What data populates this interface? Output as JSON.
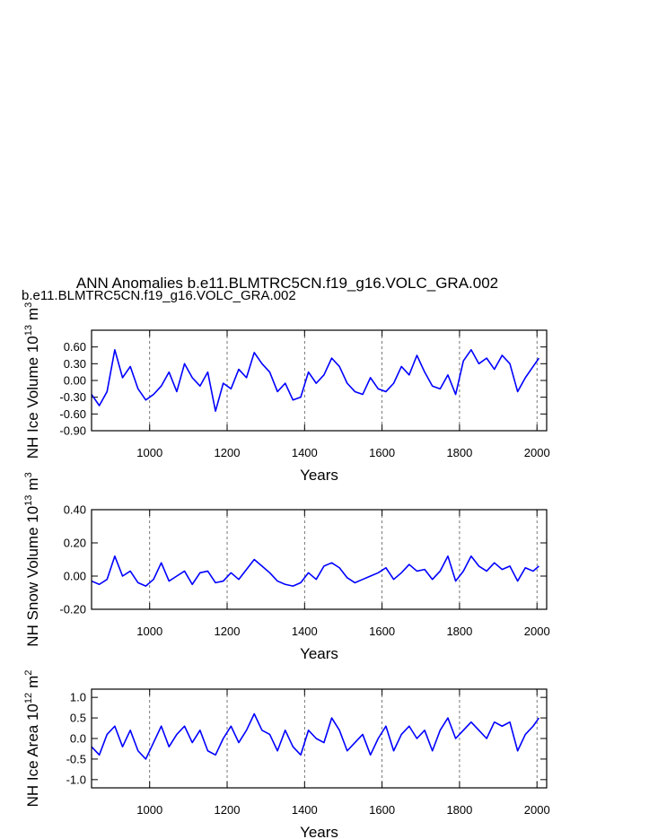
{
  "chart_data": [
    {
      "type": "line",
      "title": "ANN Anomalies b.e11.BLMTRC5CN.f19_g16.VOLC_GRA.002",
      "subtitle": "b.e11.BLMTRC5CN.f19_g16.VOLC_GRA.002",
      "subtitle_color": "#0000ff",
      "ylabel": [
        "NH Ice Volume 10",
        "13",
        "m",
        "3"
      ],
      "xlabel": "Years",
      "color": "#0000ff",
      "xlim": [
        850,
        2025
      ],
      "xticks": [
        1000,
        1200,
        1400,
        1600,
        1800,
        2000
      ],
      "grid": true,
      "ylim": [
        -0.9,
        0.9
      ],
      "yticks": [
        {
          "value": -0.9,
          "label": "-0.90"
        },
        {
          "value": -0.6,
          "label": "-0.60"
        },
        {
          "value": -0.3,
          "label": "-0.30"
        },
        {
          "value": 0,
          "label": "0.00"
        },
        {
          "value": 0.3,
          "label": "0.30"
        },
        {
          "value": 0.6,
          "label": "0.60"
        }
      ],
      "x": [
        850,
        870,
        890,
        910,
        930,
        950,
        970,
        990,
        1010,
        1030,
        1050,
        1070,
        1090,
        1110,
        1130,
        1150,
        1170,
        1190,
        1210,
        1230,
        1250,
        1270,
        1290,
        1310,
        1330,
        1350,
        1370,
        1390,
        1410,
        1430,
        1450,
        1470,
        1490,
        1510,
        1530,
        1550,
        1570,
        1590,
        1610,
        1630,
        1650,
        1670,
        1690,
        1710,
        1730,
        1750,
        1770,
        1790,
        1810,
        1830,
        1850,
        1870,
        1890,
        1910,
        1930,
        1950,
        1970,
        1990,
        2005
      ],
      "values": [
        -0.25,
        -0.45,
        -0.2,
        0.55,
        0.05,
        0.25,
        -0.15,
        -0.35,
        -0.25,
        -0.1,
        0.15,
        -0.2,
        0.3,
        0.05,
        -0.1,
        0.15,
        -0.55,
        -0.05,
        -0.15,
        0.2,
        0.05,
        0.5,
        0.3,
        0.15,
        -0.2,
        -0.05,
        -0.35,
        -0.3,
        0.15,
        -0.05,
        0.1,
        0.4,
        0.25,
        -0.05,
        -0.2,
        -0.25,
        0.05,
        -0.15,
        -0.2,
        -0.05,
        0.25,
        0.1,
        0.45,
        0.15,
        -0.1,
        -0.15,
        0.1,
        -0.25,
        0.35,
        0.55,
        0.3,
        0.4,
        0.2,
        0.45,
        0.3,
        -0.2,
        0.05,
        0.25,
        0.4
      ]
    },
    {
      "type": "line",
      "ylabel": [
        "NH Snow Volume 10",
        "13",
        "m",
        "3"
      ],
      "xlabel": "Years",
      "color": "#0000ff",
      "xlim": [
        850,
        2025
      ],
      "xticks": [
        1000,
        1200,
        1400,
        1600,
        1800,
        2000
      ],
      "grid": true,
      "ylim": [
        -0.2,
        0.4
      ],
      "yticks": [
        {
          "value": -0.2,
          "label": "-0.20"
        },
        {
          "value": 0,
          "label": "0.00"
        },
        {
          "value": 0.2,
          "label": "0.20"
        },
        {
          "value": 0.4,
          "label": "0.40"
        }
      ],
      "x": [
        850,
        870,
        890,
        910,
        930,
        950,
        970,
        990,
        1010,
        1030,
        1050,
        1070,
        1090,
        1110,
        1130,
        1150,
        1170,
        1190,
        1210,
        1230,
        1250,
        1270,
        1290,
        1310,
        1330,
        1350,
        1370,
        1390,
        1410,
        1430,
        1450,
        1470,
        1490,
        1510,
        1530,
        1550,
        1570,
        1590,
        1610,
        1630,
        1650,
        1670,
        1690,
        1710,
        1730,
        1750,
        1770,
        1790,
        1810,
        1830,
        1850,
        1870,
        1890,
        1910,
        1930,
        1950,
        1970,
        1990,
        2005
      ],
      "values": [
        -0.03,
        -0.05,
        -0.02,
        0.12,
        0.0,
        0.03,
        -0.04,
        -0.06,
        -0.02,
        0.08,
        -0.03,
        0.0,
        0.03,
        -0.05,
        0.02,
        0.03,
        -0.04,
        -0.03,
        0.02,
        -0.02,
        0.04,
        0.1,
        0.06,
        0.02,
        -0.03,
        -0.05,
        -0.06,
        -0.04,
        0.02,
        -0.02,
        0.06,
        0.08,
        0.05,
        -0.01,
        -0.04,
        -0.02,
        0.0,
        0.02,
        0.05,
        -0.02,
        0.02,
        0.07,
        0.03,
        0.04,
        -0.02,
        0.03,
        0.12,
        -0.03,
        0.03,
        0.12,
        0.06,
        0.03,
        0.08,
        0.04,
        0.06,
        -0.03,
        0.05,
        0.03,
        0.06
      ]
    },
    {
      "type": "line",
      "ylabel": [
        "NH Ice Area 10",
        "12",
        "m",
        "2"
      ],
      "xlabel": "Years",
      "color": "#0000ff",
      "xlim": [
        850,
        2025
      ],
      "xticks": [
        1000,
        1200,
        1400,
        1600,
        1800,
        2000
      ],
      "grid": true,
      "ylim": [
        -1.2,
        1.2
      ],
      "yticks": [
        {
          "value": -1,
          "label": "-1.0"
        },
        -0.5,
        {
          "value": 0,
          "label": "0.0"
        },
        0.5,
        {
          "value": 1,
          "label": "1.0"
        }
      ],
      "x": [
        850,
        870,
        890,
        910,
        930,
        950,
        970,
        990,
        1010,
        1030,
        1050,
        1070,
        1090,
        1110,
        1130,
        1150,
        1170,
        1190,
        1210,
        1230,
        1250,
        1270,
        1290,
        1310,
        1330,
        1350,
        1370,
        1390,
        1410,
        1430,
        1450,
        1470,
        1490,
        1510,
        1530,
        1550,
        1570,
        1590,
        1610,
        1630,
        1650,
        1670,
        1690,
        1710,
        1730,
        1750,
        1770,
        1790,
        1810,
        1830,
        1850,
        1870,
        1890,
        1910,
        1930,
        1950,
        1970,
        1990,
        2005
      ],
      "values": [
        -0.2,
        -0.4,
        0.1,
        0.3,
        -0.2,
        0.2,
        -0.3,
        -0.5,
        -0.1,
        0.3,
        -0.2,
        0.1,
        0.3,
        -0.1,
        0.2,
        -0.3,
        -0.4,
        0.0,
        0.3,
        -0.1,
        0.2,
        0.6,
        0.2,
        0.1,
        -0.3,
        0.2,
        -0.2,
        -0.4,
        0.2,
        0.0,
        -0.1,
        0.5,
        0.2,
        -0.3,
        -0.1,
        0.1,
        -0.4,
        0.0,
        0.3,
        -0.3,
        0.1,
        0.3,
        0.0,
        0.2,
        -0.3,
        0.2,
        0.5,
        0.0,
        0.2,
        0.4,
        0.2,
        0.0,
        0.4,
        0.3,
        0.4,
        -0.3,
        0.1,
        0.3,
        0.5
      ]
    }
  ]
}
